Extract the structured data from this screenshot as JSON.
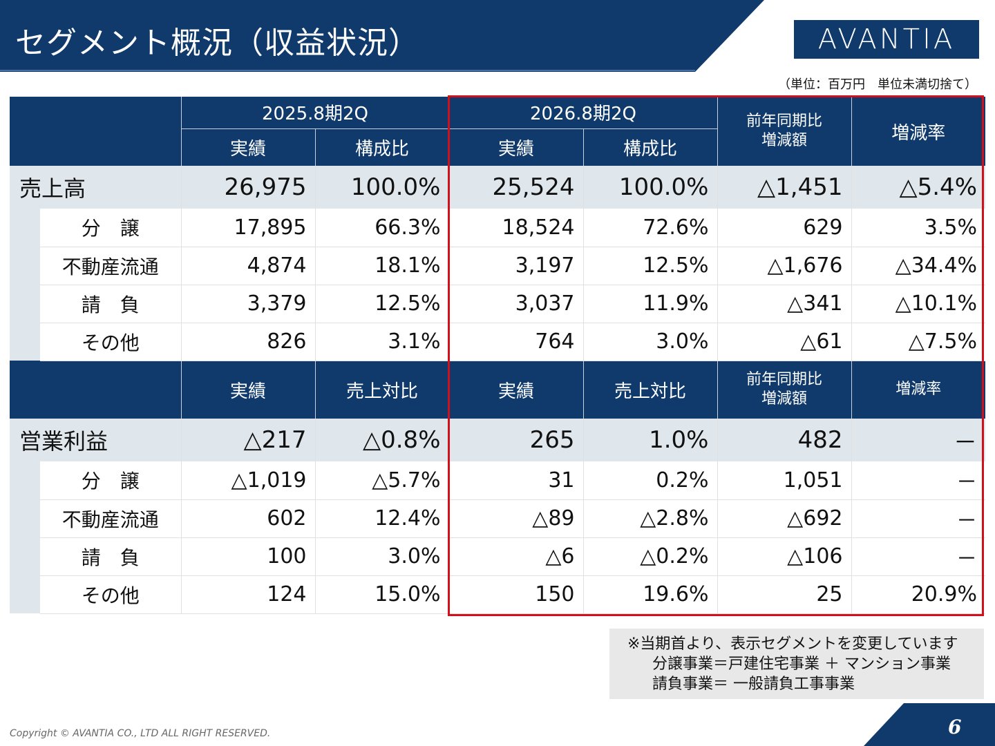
{
  "header": {
    "title": "セグメント概況（収益状況）",
    "logo": "AVANTIA",
    "unit_note": "（単位：百万円　単位未満切捨て）"
  },
  "table_header": {
    "period_prev": "2025.8期2Q",
    "period_curr": "2026.8期2Q",
    "yoy_diff": [
      "前年同期比",
      "増減額"
    ],
    "change_rate": "増減率",
    "actual": "実績",
    "composition": "構成比",
    "sales_ratio": "売上対比"
  },
  "sales": {
    "label": "売上高",
    "total": [
      "26,975",
      "100.0%",
      "25,524",
      "100.0%",
      "△1,451",
      "△5.4%"
    ],
    "rows": [
      {
        "label": "分　譲",
        "values": [
          "17,895",
          "66.3%",
          "18,524",
          "72.6%",
          "629",
          "3.5%"
        ]
      },
      {
        "label": "不動産流通",
        "values": [
          "4,874",
          "18.1%",
          "3,197",
          "12.5%",
          "△1,676",
          "△34.4%"
        ]
      },
      {
        "label": "請　負",
        "values": [
          "3,379",
          "12.5%",
          "3,037",
          "11.9%",
          "△341",
          "△10.1%"
        ]
      },
      {
        "label": "その他",
        "values": [
          "826",
          "3.1%",
          "764",
          "3.0%",
          "△61",
          "△7.5%"
        ]
      }
    ]
  },
  "operating_profit": {
    "label": "営業利益",
    "total": [
      "△217",
      "△0.8%",
      "265",
      "1.0%",
      "482",
      "－"
    ],
    "rows": [
      {
        "label": "分　譲",
        "values": [
          "△1,019",
          "△5.7%",
          "31",
          "0.2%",
          "1,051",
          "－"
        ]
      },
      {
        "label": "不動産流通",
        "values": [
          "602",
          "12.4%",
          "△89",
          "△2.8%",
          "△692",
          "－"
        ]
      },
      {
        "label": "請　負",
        "values": [
          "100",
          "3.0%",
          "△6",
          "△0.2%",
          "△106",
          "－"
        ]
      },
      {
        "label": "その他",
        "values": [
          "124",
          "15.0%",
          "150",
          "19.6%",
          "25",
          "20.9%"
        ]
      }
    ]
  },
  "footnote": {
    "line1": "※当期首より、表示セグメントを変更しています",
    "line2": "分譲事業＝戸建住宅事業 ＋ マンション事業",
    "line3": "請負事業＝ 一般請負工事事業"
  },
  "footer": {
    "copyright": "Copyright © AVANTIA CO., LTD ALL RIGHT RESERVED.",
    "page_number": "6"
  },
  "colors": {
    "navy": "#0f3a6b",
    "light_row": "#dfe7ec",
    "highlight_red": "#d0101b"
  }
}
